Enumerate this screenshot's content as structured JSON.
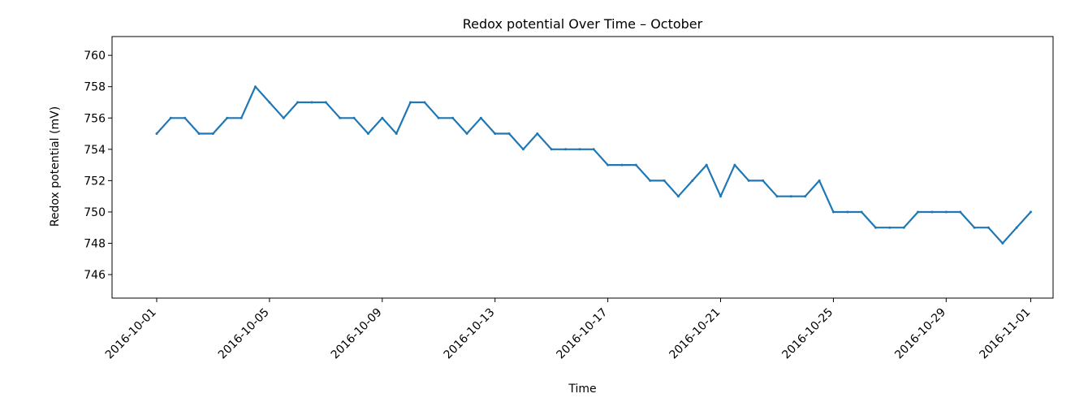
{
  "chart_data": {
    "type": "line",
    "title": "Redox potential Over Time – October",
    "xlabel": "Time",
    "ylabel": "Redox potential (mV)",
    "xlim": [
      "2016-09-29T10:00",
      "2016-11-01T19:00"
    ],
    "ylim": [
      744.5,
      761.2
    ],
    "grid": false,
    "x_ticks": [
      "2016-10-01",
      "2016-10-05",
      "2016-10-09",
      "2016-10-13",
      "2016-10-17",
      "2016-10-21",
      "2016-10-25",
      "2016-10-29",
      "2016-11-01"
    ],
    "y_ticks": [
      746,
      748,
      750,
      752,
      754,
      756,
      758,
      760
    ],
    "series": [
      {
        "color": "#1f77b4",
        "x": [
          "2016-10-01",
          "2016-10-01T12:00",
          "2016-10-02",
          "2016-10-02T12:00",
          "2016-10-03",
          "2016-10-03T12:00",
          "2016-10-04",
          "2016-10-04T12:00",
          "2016-10-05",
          "2016-10-05T12:00",
          "2016-10-06",
          "2016-10-06T12:00",
          "2016-10-07",
          "2016-10-07T12:00",
          "2016-10-08",
          "2016-10-08T12:00",
          "2016-10-09",
          "2016-10-09T12:00",
          "2016-10-10",
          "2016-10-10T12:00",
          "2016-10-11",
          "2016-10-11T12:00",
          "2016-10-12",
          "2016-10-12T12:00",
          "2016-10-13",
          "2016-10-13T12:00",
          "2016-10-14",
          "2016-10-14T12:00",
          "2016-10-15",
          "2016-10-15T12:00",
          "2016-10-16",
          "2016-10-16T12:00",
          "2016-10-17",
          "2016-10-17T12:00",
          "2016-10-18",
          "2016-10-18T12:00",
          "2016-10-19",
          "2016-10-19T12:00",
          "2016-10-20",
          "2016-10-20T12:00",
          "2016-10-21",
          "2016-10-21T12:00",
          "2016-10-22",
          "2016-10-22T12:00",
          "2016-10-23",
          "2016-10-23T12:00",
          "2016-10-24",
          "2016-10-24T12:00",
          "2016-10-25",
          "2016-10-25T12:00",
          "2016-10-26",
          "2016-10-26T12:00",
          "2016-10-27",
          "2016-10-27T12:00",
          "2016-10-28",
          "2016-10-28T12:00",
          "2016-10-29",
          "2016-10-29T12:00",
          "2016-10-30",
          "2016-10-30T12:00",
          "2016-10-31",
          "2016-10-31T12:00",
          "2016-11-01"
        ],
        "y": [
          755,
          756,
          756,
          755,
          755,
          756,
          756,
          758,
          757,
          756,
          757,
          757,
          757,
          756,
          756,
          755,
          756,
          755,
          757,
          757,
          756,
          756,
          755,
          756,
          755,
          755,
          754,
          755,
          754,
          754,
          754,
          754,
          753,
          753,
          753,
          752,
          752,
          751,
          752,
          753,
          751,
          753,
          752,
          752,
          751,
          751,
          751,
          752,
          750,
          750,
          750,
          749,
          749,
          749,
          750,
          750,
          750,
          750,
          749,
          749,
          748,
          749,
          750
        ]
      }
    ]
  }
}
